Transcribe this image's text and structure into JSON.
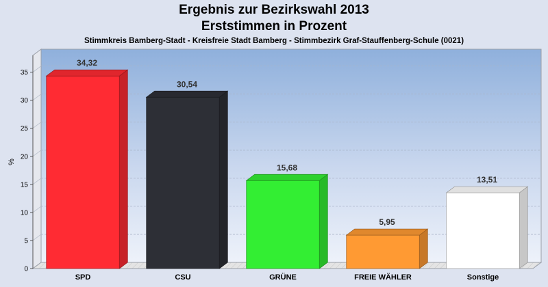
{
  "chart_data": {
    "type": "bar",
    "title": "Ergebnis zur Bezirkswahl 2013",
    "subtitle": "Erststimmen in Prozent",
    "caption": "Stimmkreis Bamberg-Stadt - Kreisfreie Stadt Bamberg - Stimmbezirk Graf-Stauffenberg-Schule (0021)",
    "ylabel": "%",
    "xlabel": "",
    "ylim": [
      0,
      38
    ],
    "yticks": [
      0,
      5,
      10,
      15,
      20,
      25,
      30,
      35
    ],
    "grid": true,
    "categories": [
      "SPD",
      "CSU",
      "GRÜNE",
      "FREIE WÄHLER",
      "Sonstige"
    ],
    "values": [
      34.32,
      30.54,
      15.68,
      5.95,
      13.51
    ],
    "value_labels": [
      "34,32",
      "30,54",
      "15,68",
      "5,95",
      "13,51"
    ],
    "colors": [
      "#ff2b33",
      "#2d2f36",
      "#33ee33",
      "#ff9a33",
      "#ffffff"
    ]
  }
}
